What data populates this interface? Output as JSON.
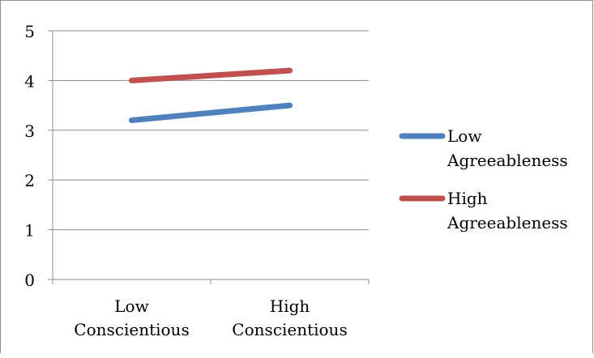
{
  "chart_data": {
    "type": "line",
    "categories": [
      "Low Conscientious",
      "High Conscientious"
    ],
    "category_lines": [
      [
        "Low",
        "Conscientious"
      ],
      [
        "High",
        "Conscientious"
      ]
    ],
    "ylim": [
      0,
      5
    ],
    "yticks": [
      "0",
      "1",
      "2",
      "3",
      "4",
      "5"
    ],
    "grid": true,
    "legend_position": "right",
    "series": [
      {
        "name": "Low Agreeableness",
        "name_lines": [
          "Low",
          "Agreeableness"
        ],
        "color": "#4f81bd",
        "values": [
          3.2,
          3.5
        ]
      },
      {
        "name": "High Agreeableness",
        "name_lines": [
          "High",
          "Agreeableness"
        ],
        "color": "#c0504d",
        "values": [
          4.0,
          4.2
        ]
      }
    ]
  }
}
